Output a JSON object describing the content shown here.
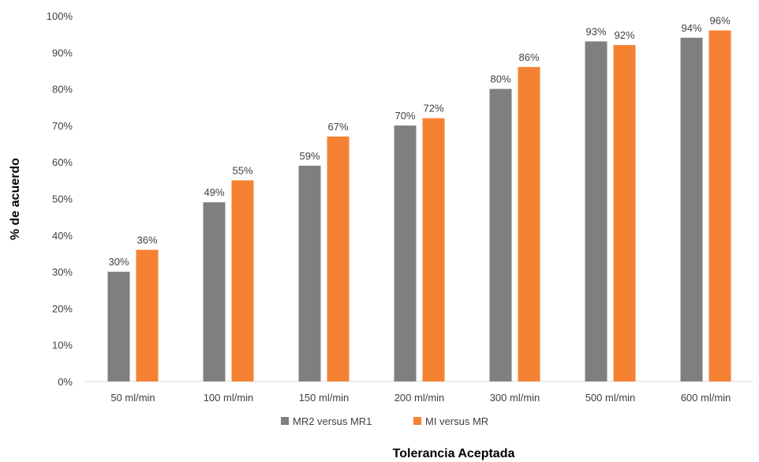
{
  "chart_data": {
    "type": "bar",
    "xlabel": "Tolerancia Aceptada",
    "ylabel": "% de acuerdo",
    "ylim": [
      0,
      100
    ],
    "yticks": [
      "0%",
      "10%",
      "20%",
      "30%",
      "40%",
      "50%",
      "60%",
      "70%",
      "80%",
      "90%",
      "100%"
    ],
    "categories": [
      "50 ml/min",
      "100 ml/min",
      "150 ml/min",
      "200 ml/min",
      "300 ml/min",
      "500 ml/min",
      "600 ml/min"
    ],
    "series": [
      {
        "name": "MR2 versus MR1",
        "color": "#7f7f7f",
        "values": [
          30,
          49,
          59,
          70,
          80,
          93,
          94
        ],
        "labels": [
          "30%",
          "49%",
          "59%",
          "70%",
          "80%",
          "93%",
          "94%"
        ]
      },
      {
        "name": "MI versus MR",
        "color": "#f58232",
        "values": [
          36,
          55,
          67,
          72,
          86,
          92,
          96
        ],
        "labels": [
          "36%",
          "55%",
          "67%",
          "72%",
          "86%",
          "92%",
          "96%"
        ]
      }
    ],
    "legend_position": "bottom",
    "grid": false
  }
}
